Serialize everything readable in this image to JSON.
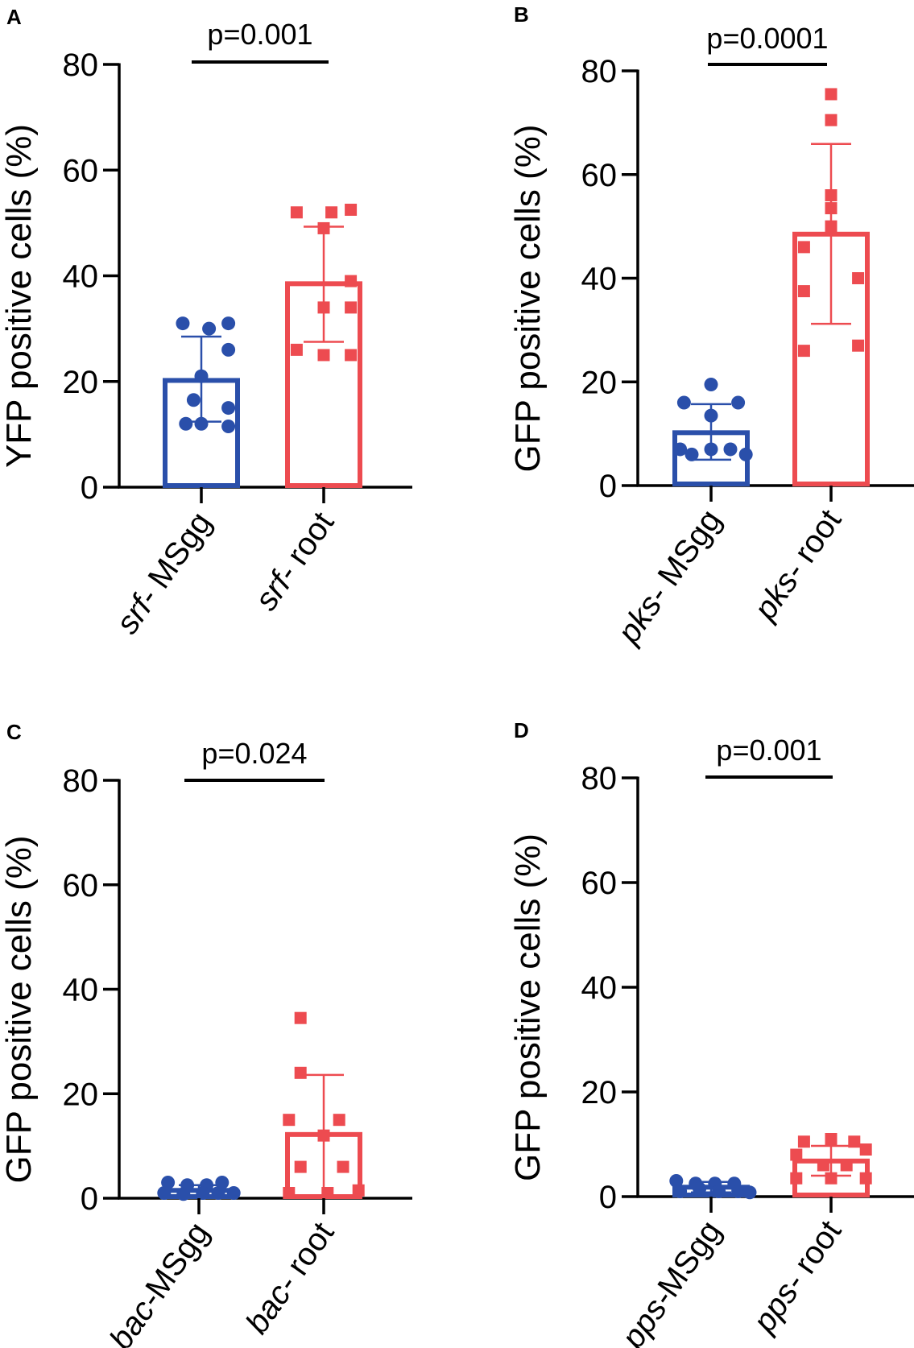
{
  "colors": {
    "blue": "#2a4faa",
    "red": "#ed4b50",
    "axis": "#000000"
  },
  "chart_data": [
    {
      "panel": "A",
      "type": "bar",
      "ylabel": "YFP positive cells (%)",
      "ylim": [
        0,
        80
      ],
      "yticks": [
        0,
        20,
        40,
        60,
        80
      ],
      "p_value": "p=0.001",
      "categories": [
        {
          "italic": "srf-",
          "rest": " MSgg",
          "color": "blue",
          "marker": "circle",
          "mean": 20.2,
          "sd_low": 12.4,
          "sd_high": 28.5,
          "points": [
            [
              -0.24,
              31.0
            ],
            [
              0.1,
              30.0
            ],
            [
              0.35,
              31.0
            ],
            [
              0.35,
              26.0
            ],
            [
              0.0,
              21.0
            ],
            [
              0.35,
              15.0
            ],
            [
              -0.2,
              12.0
            ],
            [
              0.0,
              12.0
            ],
            [
              0.35,
              11.5
            ],
            [
              -0.1,
              16.5
            ]
          ]
        },
        {
          "italic": "srf-",
          "rest": " root",
          "color": "red",
          "marker": "square",
          "mean": 38.5,
          "sd_low": 27.5,
          "sd_high": 49.3,
          "points": [
            [
              -0.35,
              52.0
            ],
            [
              0.1,
              52.0
            ],
            [
              0.35,
              52.5
            ],
            [
              0.0,
              49.0
            ],
            [
              0.35,
              39.0
            ],
            [
              0.0,
              34.0
            ],
            [
              0.35,
              34.0
            ],
            [
              -0.35,
              26.0
            ],
            [
              0.0,
              25.0
            ],
            [
              0.35,
              25.0
            ]
          ]
        }
      ]
    },
    {
      "panel": "B",
      "type": "bar",
      "ylabel": "GFP positive cells (%)",
      "ylim": [
        0,
        80
      ],
      "yticks": [
        0,
        20,
        40,
        60,
        80
      ],
      "p_value": "p=0.0001",
      "categories": [
        {
          "italic": "pks-",
          "rest": " MSgg",
          "color": "blue",
          "marker": "circle",
          "mean": 10.2,
          "sd_low": 5.0,
          "sd_high": 15.7,
          "points": [
            [
              0.0,
              19.5
            ],
            [
              -0.35,
              16.0
            ],
            [
              0.35,
              16.0
            ],
            [
              0.0,
              13.5
            ],
            [
              -0.4,
              7.0
            ],
            [
              0.0,
              7.0
            ],
            [
              0.25,
              7.0
            ],
            [
              0.45,
              6.0
            ],
            [
              -0.25,
              6.0
            ]
          ]
        },
        {
          "italic": "pks-",
          "rest": " root",
          "color": "red",
          "marker": "square",
          "mean": 48.5,
          "sd_low": 31.2,
          "sd_high": 65.9,
          "points": [
            [
              0.0,
              75.5
            ],
            [
              0.0,
              70.5
            ],
            [
              0.0,
              56.0
            ],
            [
              0.0,
              53.5
            ],
            [
              0.0,
              50.0
            ],
            [
              -0.35,
              46.0
            ],
            [
              0.35,
              40.0
            ],
            [
              -0.35,
              37.5
            ],
            [
              -0.35,
              26.0
            ],
            [
              0.35,
              27.0
            ]
          ]
        }
      ]
    },
    {
      "panel": "C",
      "type": "bar",
      "ylabel": "GFP positive cells (%)",
      "ylim": [
        0,
        80
      ],
      "yticks": [
        0,
        20,
        40,
        60,
        80
      ],
      "p_value": "p=0.024",
      "categories": [
        {
          "italic": "bac-",
          "rest": "MSgg",
          "color": "blue",
          "marker": "circle",
          "mean": 1.5,
          "sd_low": 0.5,
          "sd_high": 2.5,
          "points": [
            [
              -0.4,
              3.0
            ],
            [
              -0.15,
              2.5
            ],
            [
              0.1,
              2.5
            ],
            [
              0.3,
              3.0
            ],
            [
              -0.45,
              1.0
            ],
            [
              -0.2,
              0.8
            ],
            [
              0.05,
              1.0
            ],
            [
              0.25,
              1.0
            ],
            [
              0.45,
              1.0
            ]
          ]
        },
        {
          "italic": "bac-",
          "rest": " root",
          "color": "red",
          "marker": "square",
          "mean": 12.2,
          "sd_low": 0.5,
          "sd_high": 23.6,
          "points": [
            [
              -0.3,
              34.5
            ],
            [
              -0.3,
              24.0
            ],
            [
              -0.45,
              15.0
            ],
            [
              0.2,
              15.0
            ],
            [
              0.0,
              12.0
            ],
            [
              -0.3,
              6.0
            ],
            [
              0.25,
              6.0
            ],
            [
              -0.45,
              1.0
            ],
            [
              0.05,
              1.0
            ],
            [
              0.45,
              1.5
            ]
          ]
        }
      ]
    },
    {
      "panel": "D",
      "type": "bar",
      "ylabel": "GFP positive cells (%)",
      "ylim": [
        0,
        80
      ],
      "yticks": [
        0,
        20,
        40,
        60,
        80
      ],
      "p_value": "p=0.001",
      "categories": [
        {
          "italic": "pps-",
          "rest": "MSgg",
          "color": "blue",
          "marker": "circle",
          "mean": 1.8,
          "sd_low": 0.8,
          "sd_high": 2.8,
          "points": [
            [
              -0.45,
              3.0
            ],
            [
              -0.2,
              2.5
            ],
            [
              0.05,
              2.5
            ],
            [
              0.3,
              2.5
            ],
            [
              -0.4,
              1.0
            ],
            [
              -0.15,
              1.5
            ],
            [
              0.1,
              1.0
            ],
            [
              0.35,
              1.0
            ],
            [
              0.5,
              0.8
            ]
          ]
        },
        {
          "italic": "pps-",
          "rest": " root",
          "color": "red",
          "marker": "square",
          "mean": 6.8,
          "sd_low": 4.0,
          "sd_high": 9.7,
          "points": [
            [
              -0.35,
              10.5
            ],
            [
              0.0,
              11.0
            ],
            [
              0.3,
              10.5
            ],
            [
              -0.45,
              8.0
            ],
            [
              0.45,
              9.0
            ],
            [
              -0.1,
              6.0
            ],
            [
              0.2,
              6.0
            ],
            [
              -0.45,
              3.5
            ],
            [
              0.0,
              3.5
            ],
            [
              0.45,
              3.5
            ]
          ]
        }
      ]
    }
  ]
}
